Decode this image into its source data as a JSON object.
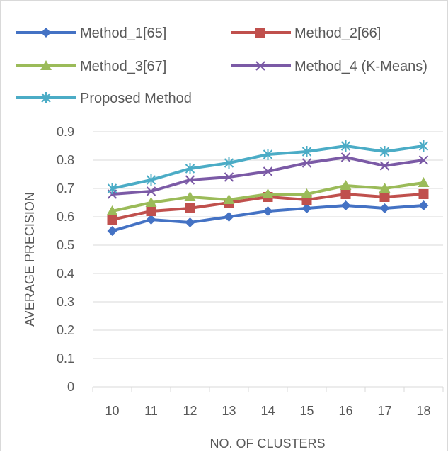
{
  "chart_data": {
    "type": "line",
    "title": "",
    "xlabel": "NO. OF CLUSTERS",
    "ylabel": "AVERAGE PRECISION",
    "x": [
      10,
      11,
      12,
      13,
      14,
      15,
      16,
      17,
      18
    ],
    "ylim": [
      0,
      0.9
    ],
    "yticks": [
      0,
      0.1,
      0.2,
      0.3,
      0.4,
      0.5,
      0.6,
      0.7,
      0.8,
      0.9
    ],
    "grid": "horizontal",
    "legend_position": "top",
    "series": [
      {
        "name": "Method_1[65]",
        "color": "#4472c4",
        "marker": "diamond",
        "values": [
          0.55,
          0.59,
          0.58,
          0.6,
          0.62,
          0.63,
          0.64,
          0.63,
          0.64
        ]
      },
      {
        "name": "Method_2[66]",
        "color": "#c0504d",
        "marker": "square",
        "values": [
          0.59,
          0.62,
          0.63,
          0.65,
          0.67,
          0.66,
          0.68,
          0.67,
          0.68
        ]
      },
      {
        "name": "Method_3[67]",
        "color": "#9bbb59",
        "marker": "triangle",
        "values": [
          0.62,
          0.65,
          0.67,
          0.66,
          0.68,
          0.68,
          0.71,
          0.7,
          0.72
        ]
      },
      {
        "name": "Method_4 (K-Means)",
        "color": "#7b5aa6",
        "marker": "x",
        "values": [
          0.68,
          0.69,
          0.73,
          0.74,
          0.76,
          0.79,
          0.81,
          0.78,
          0.8
        ]
      },
      {
        "name": "Proposed Method",
        "color": "#4bacc6",
        "marker": "star",
        "values": [
          0.7,
          0.73,
          0.77,
          0.79,
          0.82,
          0.83,
          0.85,
          0.83,
          0.85
        ]
      }
    ]
  }
}
